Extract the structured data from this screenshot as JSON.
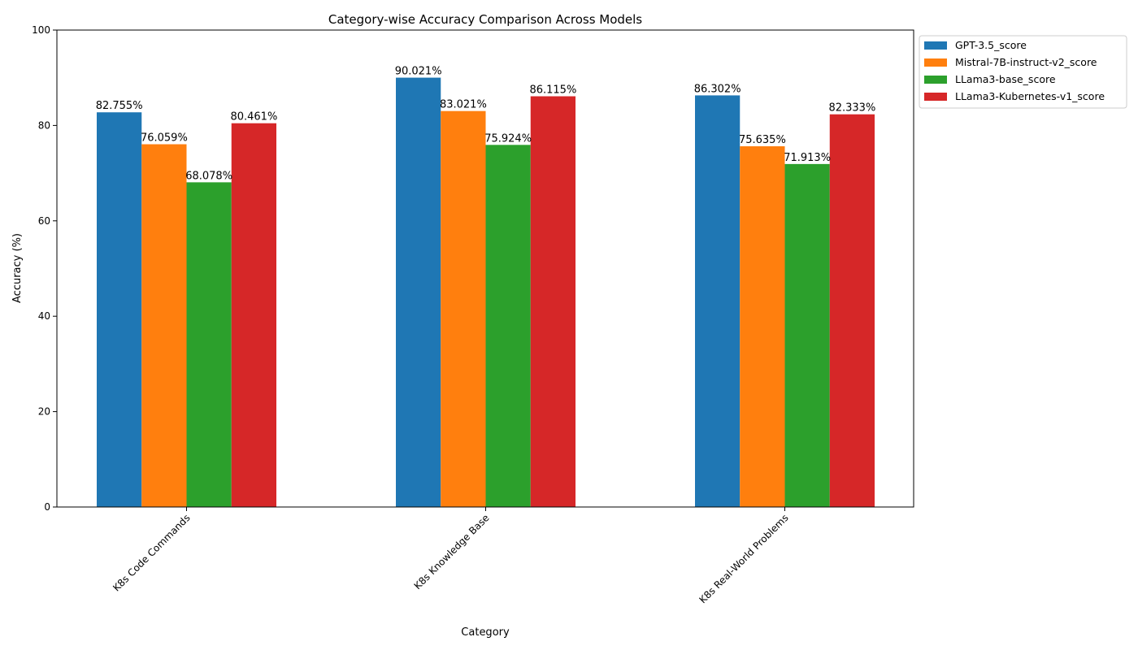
{
  "chart_data": {
    "type": "bar",
    "title": "Category-wise Accuracy Comparison Across Models",
    "xlabel": "Category",
    "ylabel": "Accuracy (%)",
    "ylim": [
      0,
      100
    ],
    "yticks": [
      0,
      20,
      40,
      60,
      80,
      100
    ],
    "categories": [
      "K8s Code Commands",
      "K8s Knowledge Base",
      "K8s Real-World Problems"
    ],
    "series": [
      {
        "name": "GPT-3.5_score",
        "color": "#1f77b4",
        "values": [
          82.755,
          90.021,
          86.302
        ],
        "labels": [
          "82.755%",
          "90.021%",
          "86.302%"
        ]
      },
      {
        "name": "Mistral-7B-instruct-v2_score",
        "color": "#ff7f0e",
        "values": [
          76.059,
          83.021,
          75.635
        ],
        "labels": [
          "76.059%",
          "83.021%",
          "75.635%"
        ]
      },
      {
        "name": "LLama3-base_score",
        "color": "#2ca02c",
        "values": [
          68.078,
          75.924,
          71.913
        ],
        "labels": [
          "68.078%",
          "75.924%",
          "71.913%"
        ]
      },
      {
        "name": "LLama3-Kubernetes-v1_score",
        "color": "#d62728",
        "values": [
          80.461,
          86.115,
          82.333
        ],
        "labels": [
          "80.461%",
          "86.115%",
          "82.333%"
        ]
      }
    ],
    "grid": false,
    "legend_position": "outside-top-right"
  }
}
